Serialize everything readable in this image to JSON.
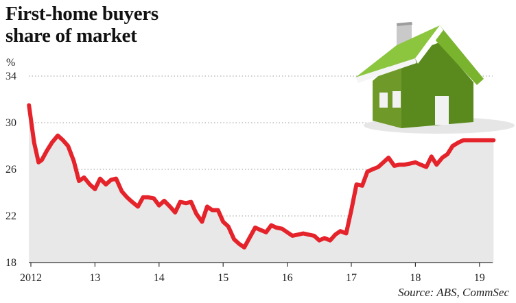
{
  "title_lines": [
    "First-home buyers",
    "share of market"
  ],
  "source": "Source: ABS, CommSec",
  "icon": "house-icon",
  "colors": {
    "line": "#e5232b",
    "area": "#e8e8e8",
    "grid": "#9a9a9a",
    "house_roof": "#8cc63f",
    "house_wall": "#5a8a1e"
  },
  "chart_data": {
    "type": "area",
    "title": "First-home buyers share of market",
    "ylabel": "%",
    "ylim": [
      18,
      34
    ],
    "yticks": [
      18,
      22,
      26,
      30,
      34
    ],
    "xlim": [
      2012,
      2019.3
    ],
    "xticks": [
      2012,
      2013,
      2014,
      2015,
      2016,
      2017,
      2018,
      2019
    ],
    "xtick_labels": [
      "2012",
      "13",
      "14",
      "15",
      "16",
      "17",
      "18",
      "19"
    ],
    "grid": true,
    "series": [
      {
        "x": [
          2011.97,
          2012.05,
          2012.12,
          2012.17,
          2012.25,
          2012.33,
          2012.42,
          2012.5,
          2012.58,
          2012.67,
          2012.75,
          2012.83,
          2012.92,
          2013.0,
          2013.08,
          2013.17,
          2013.25,
          2013.33,
          2013.42,
          2013.5,
          2013.58,
          2013.67,
          2013.75,
          2013.83,
          2013.92,
          2014.0,
          2014.08,
          2014.17,
          2014.25,
          2014.33,
          2014.42,
          2014.5,
          2014.58,
          2014.67,
          2014.75,
          2014.83,
          2014.92,
          2015.0,
          2015.08,
          2015.17,
          2015.25,
          2015.33,
          2015.42,
          2015.5,
          2015.58,
          2015.67,
          2015.75,
          2015.83,
          2015.92,
          2016.0,
          2016.08,
          2016.17,
          2016.25,
          2016.33,
          2016.42,
          2016.5,
          2016.58,
          2016.67,
          2016.75,
          2016.83,
          2016.92,
          2017.0,
          2017.08,
          2017.17,
          2017.25,
          2017.33,
          2017.42,
          2017.5,
          2017.58,
          2017.67,
          2017.75,
          2017.83,
          2017.92,
          2018.0,
          2018.08,
          2018.17,
          2018.25,
          2018.33,
          2018.42,
          2018.5,
          2018.58,
          2018.67,
          2018.75,
          2018.83,
          2018.92,
          2019.0,
          2019.08,
          2019.17,
          2019.22
        ],
        "values": [
          31.5,
          28.3,
          26.6,
          26.8,
          27.6,
          28.3,
          28.9,
          28.5,
          28.0,
          26.7,
          25.0,
          25.3,
          24.7,
          24.3,
          25.2,
          24.7,
          25.1,
          25.2,
          24.1,
          23.6,
          23.2,
          22.8,
          23.6,
          23.6,
          23.5,
          22.9,
          23.3,
          22.8,
          22.3,
          23.2,
          23.1,
          23.2,
          22.2,
          21.5,
          22.8,
          22.5,
          22.5,
          21.5,
          21.1,
          20.0,
          19.6,
          19.3,
          20.2,
          21.0,
          20.8,
          20.6,
          21.2,
          21.0,
          20.9,
          20.6,
          20.3,
          20.4,
          20.5,
          20.4,
          20.3,
          19.9,
          20.1,
          19.9,
          20.4,
          20.7,
          20.5,
          22.5,
          24.7,
          24.6,
          25.8,
          26.0,
          26.2,
          26.6,
          27.0,
          26.3,
          26.4,
          26.4,
          26.5,
          26.6,
          26.4,
          26.2,
          27.1,
          26.4,
          27.0,
          27.3,
          28.0,
          28.3,
          28.5,
          28.5,
          28.5,
          28.5,
          28.5,
          28.5,
          28.5
        ]
      }
    ]
  }
}
